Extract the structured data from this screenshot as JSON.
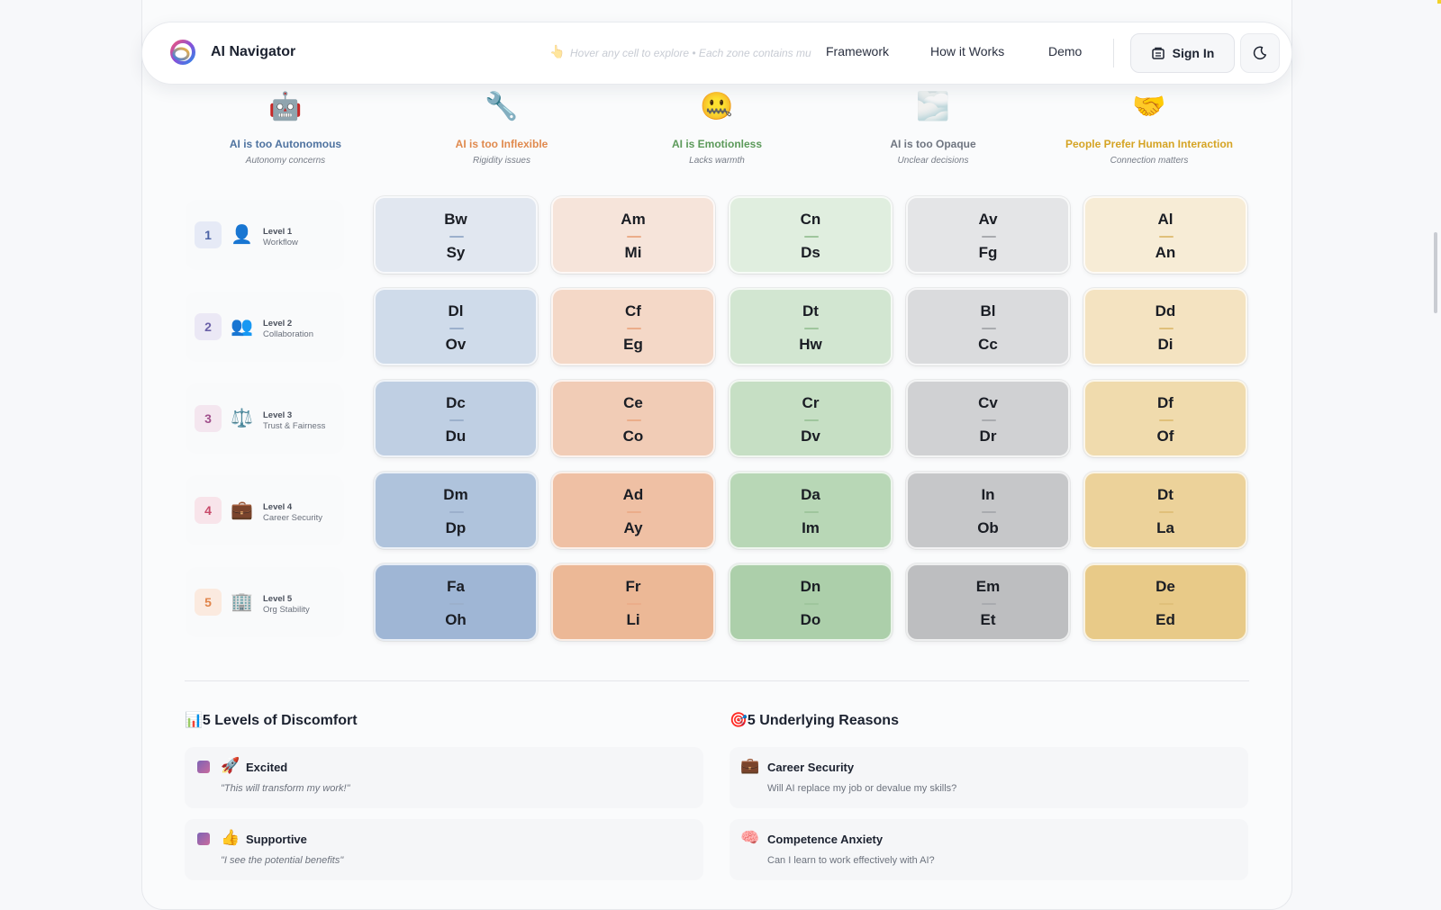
{
  "header": {
    "brand": "AI Navigator",
    "hint": "Hover any cell to explore • Each zone contains mu",
    "nav": [
      "Framework",
      "How it Works",
      "Demo"
    ],
    "sign_in": "Sign In"
  },
  "columns": [
    {
      "emoji": "🤖",
      "title": "AI is too Autonomous",
      "sub": "Autonomy concerns",
      "color": "#4f73a0"
    },
    {
      "emoji": "🔧",
      "title": "AI is too Inflexible",
      "sub": "Rigidity issues",
      "color": "#e08a4e"
    },
    {
      "emoji": "🤐",
      "title": "AI is Emotionless",
      "sub": "Lacks warmth",
      "color": "#5c9a5a"
    },
    {
      "emoji": "🌫️",
      "title": "AI is too Opaque",
      "sub": "Unclear decisions",
      "color": "#6f7580"
    },
    {
      "emoji": "🤝",
      "title": "People Prefer Human Interaction",
      "sub": "Connection matters",
      "color": "#d5a424"
    }
  ],
  "rows": [
    {
      "num": "1",
      "icon": "👤",
      "level": "Level 1",
      "name": "Workflow",
      "num_color": "#4c63a6",
      "num_bg": "#e6eaf6"
    },
    {
      "num": "2",
      "icon": "👥",
      "level": "Level 2",
      "name": "Collaboration",
      "num_color": "#6b61a8",
      "num_bg": "#ebe8f5"
    },
    {
      "num": "3",
      "icon": "⚖️",
      "level": "Level 3",
      "name": "Trust & Fairness",
      "num_color": "#a1508c",
      "num_bg": "#f4e6ef"
    },
    {
      "num": "4",
      "icon": "💼",
      "level": "Level 4",
      "name": "Career Security",
      "num_color": "#c84a6a",
      "num_bg": "#f8e4ea"
    },
    {
      "num": "5",
      "icon": "🏢",
      "level": "Level 5",
      "name": "Org Stability",
      "num_color": "#e0844a",
      "num_bg": "#fbeadf"
    }
  ],
  "grid": [
    [
      [
        "Bw",
        "Sy"
      ],
      [
        "Am",
        "Mi"
      ],
      [
        "Cn",
        "Ds"
      ],
      [
        "Av",
        "Fg"
      ],
      [
        "Al",
        "An"
      ]
    ],
    [
      [
        "Dl",
        "Ov"
      ],
      [
        "Cf",
        "Eg"
      ],
      [
        "Dt",
        "Hw"
      ],
      [
        "Bl",
        "Cc"
      ],
      [
        "Dd",
        "Di"
      ]
    ],
    [
      [
        "Dc",
        "Du"
      ],
      [
        "Ce",
        "Co"
      ],
      [
        "Cr",
        "Dv"
      ],
      [
        "Cv",
        "Dr"
      ],
      [
        "Df",
        "Of"
      ]
    ],
    [
      [
        "Dm",
        "Dp"
      ],
      [
        "Ad",
        "Ay"
      ],
      [
        "Da",
        "Im"
      ],
      [
        "In",
        "Ob"
      ],
      [
        "Dt",
        "La"
      ]
    ],
    [
      [
        "Fa",
        "Oh"
      ],
      [
        "Fr",
        "Li"
      ],
      [
        "Dn",
        "Do"
      ],
      [
        "Em",
        "Et"
      ],
      [
        "De",
        "Ed"
      ]
    ]
  ],
  "palette": {
    "blue": [
      "#e1e7f0",
      "#cfdbea",
      "#bfcfe3",
      "#afc3dc",
      "#9fb6d5"
    ],
    "orange": [
      "#f6e4da",
      "#f4d8c7",
      "#f1ccb6",
      "#efc0a4",
      "#ecb896"
    ],
    "green": [
      "#e0eedf",
      "#d2e6d1",
      "#c6dfc4",
      "#b8d7b6",
      "#accfaa"
    ],
    "gray": [
      "#e4e5e7",
      "#dadbdd",
      "#d0d1d3",
      "#c6c7c9",
      "#bdbec0"
    ],
    "yellow": [
      "#f7ecd6",
      "#f4e3c1",
      "#f0dbad",
      "#ecd29a",
      "#e8ca88"
    ],
    "bars": [
      "#9cb0cc",
      "#ebad8a",
      "#9fc69d",
      "#a9abaf",
      "#e0c07a"
    ]
  },
  "levels_section": {
    "icon": "📊",
    "title": "5 Levels of Discomfort",
    "items": [
      {
        "emoji": "🚀",
        "title": "Excited",
        "quote": "\"This will transform my work!\""
      },
      {
        "emoji": "👍",
        "title": "Supportive",
        "quote": "\"I see the potential benefits\""
      }
    ]
  },
  "reasons_section": {
    "icon": "🎯",
    "title": "5 Underlying Reasons",
    "items": [
      {
        "emoji": "💼",
        "title": "Career Security",
        "desc": "Will AI replace my job or devalue my skills?"
      },
      {
        "emoji": "🧠",
        "title": "Competence Anxiety",
        "desc": "Can I learn to work effectively with AI?"
      }
    ]
  }
}
